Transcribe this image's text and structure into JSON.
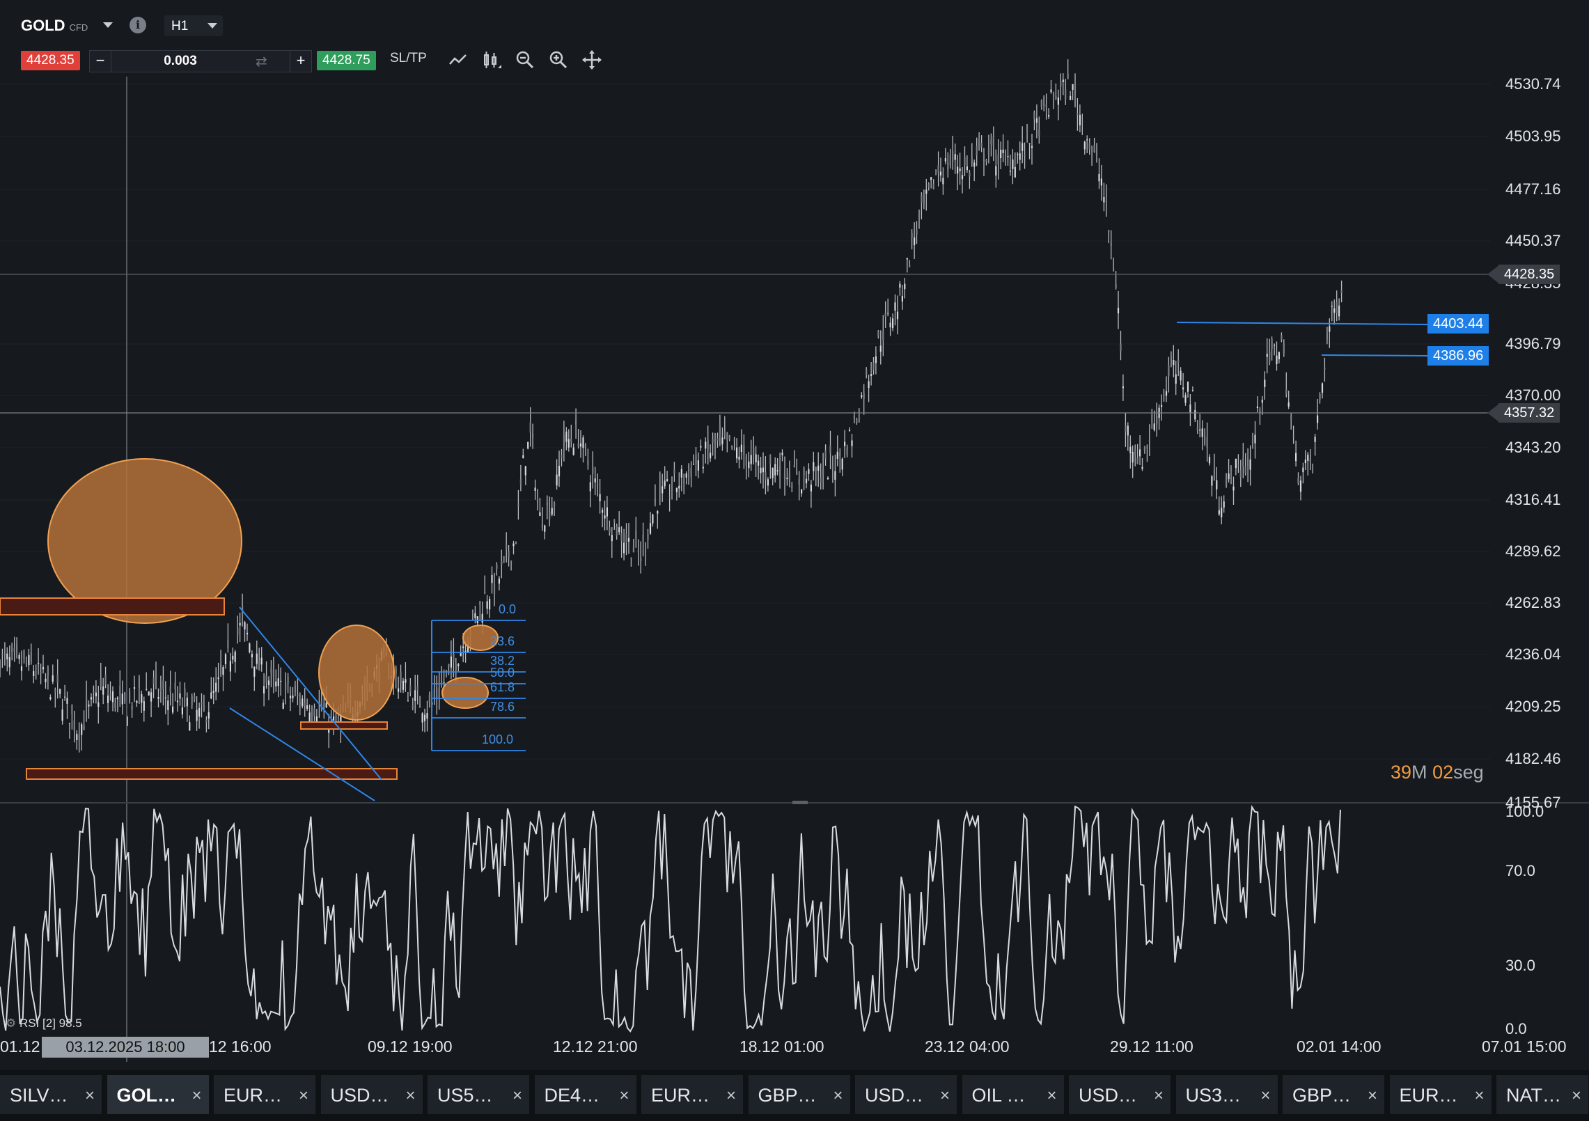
{
  "toolbar": {
    "symbol": "GOLD",
    "symbol_type": "CFD",
    "timeframe": "H1",
    "sell_price": "4428.35",
    "buy_price": "4428.75",
    "quantity": "0.003",
    "minus": "−",
    "plus": "+",
    "sltp": "SL/TP",
    "icons": [
      "line-chart-icon",
      "candles-icon",
      "zoom-out-icon",
      "zoom-in-icon",
      "crosshair-icon"
    ]
  },
  "price_axis": {
    "labels": [
      "4530.74",
      "4503.95",
      "4477.16",
      "4450.37",
      "4428.35",
      "4396.79",
      "4370.00",
      "4343.20",
      "4316.41",
      "4289.62",
      "4262.83",
      "4236.04",
      "4209.25",
      "4182.46",
      "4155.67"
    ]
  },
  "tags": {
    "current_price": "4428.35",
    "crosshair_price": "4357.32",
    "level1": "4403.44",
    "level2": "4386.96"
  },
  "timer": {
    "minutes": "39",
    "m": "M",
    "seconds": "02",
    "seg": "seg"
  },
  "fibonacci": {
    "levels": [
      "0.0",
      "23.6",
      "38.2",
      "50.0",
      "61.8",
      "78.6",
      "100.0"
    ]
  },
  "rsi": {
    "label": "RSI [2] 98.5",
    "axis": [
      "100.0",
      "70.0",
      "30.0",
      "0.0"
    ]
  },
  "time_axis": {
    "labels": [
      "01.12",
      "12 16:00",
      "09.12 19:00",
      "12.12 21:00",
      "18.12 01:00",
      "23.12 04:00",
      "29.12 11:00",
      "02.01 14:00",
      "07.01 15:00"
    ],
    "crosshair_date": "03.12.2025 18:00"
  },
  "tabs": [
    {
      "label": "SILV…",
      "active": false
    },
    {
      "label": "GOL…",
      "active": true
    },
    {
      "label": "EUR…",
      "active": false
    },
    {
      "label": "USD…",
      "active": false
    },
    {
      "label": "US5…",
      "active": false
    },
    {
      "label": "DE4…",
      "active": false
    },
    {
      "label": "EUR…",
      "active": false
    },
    {
      "label": "GBP…",
      "active": false
    },
    {
      "label": "USD…",
      "active": false
    },
    {
      "label": "OIL …",
      "active": false
    },
    {
      "label": "USD…",
      "active": false
    },
    {
      "label": "US3…",
      "active": false
    },
    {
      "label": "GBP…",
      "active": false
    },
    {
      "label": "EUR…",
      "active": false
    },
    {
      "label": "NAT…",
      "active": false
    }
  ],
  "tab_close": "×",
  "chart_data": {
    "type": "candlestick",
    "symbol": "GOLD",
    "timeframe": "H1",
    "ylim": [
      4155.67,
      4545
    ],
    "grid": true,
    "x_ticks": [
      "01.12",
      "12 16:00",
      "09.12 19:00",
      "12.12 21:00",
      "18.12 01:00",
      "23.12 04:00",
      "29.12 11:00",
      "02.01 14:00",
      "07.01 15:00"
    ],
    "close_path": [
      [
        0,
        4225
      ],
      [
        0.02,
        4222
      ],
      [
        0.04,
        4205
      ],
      [
        0.05,
        4188
      ],
      [
        0.065,
        4210
      ],
      [
        0.08,
        4200
      ],
      [
        0.095,
        4210
      ],
      [
        0.11,
        4205
      ],
      [
        0.13,
        4195
      ],
      [
        0.14,
        4212
      ],
      [
        0.15,
        4235
      ],
      [
        0.155,
        4245
      ],
      [
        0.165,
        4222
      ],
      [
        0.175,
        4212
      ],
      [
        0.19,
        4205
      ],
      [
        0.205,
        4200
      ],
      [
        0.215,
        4190
      ],
      [
        0.225,
        4200
      ],
      [
        0.235,
        4210
      ],
      [
        0.245,
        4225
      ],
      [
        0.255,
        4215
      ],
      [
        0.265,
        4205
      ],
      [
        0.275,
        4200
      ],
      [
        0.285,
        4215
      ],
      [
        0.3,
        4240
      ],
      [
        0.31,
        4258
      ],
      [
        0.32,
        4270
      ],
      [
        0.33,
        4290
      ],
      [
        0.335,
        4330
      ],
      [
        0.34,
        4345
      ],
      [
        0.345,
        4300
      ],
      [
        0.355,
        4310
      ],
      [
        0.36,
        4340
      ],
      [
        0.37,
        4345
      ],
      [
        0.38,
        4320
      ],
      [
        0.39,
        4300
      ],
      [
        0.4,
        4290
      ],
      [
        0.41,
        4280
      ],
      [
        0.42,
        4310
      ],
      [
        0.435,
        4320
      ],
      [
        0.445,
        4330
      ],
      [
        0.46,
        4340
      ],
      [
        0.475,
        4335
      ],
      [
        0.49,
        4325
      ],
      [
        0.5,
        4330
      ],
      [
        0.51,
        4320
      ],
      [
        0.525,
        4325
      ],
      [
        0.535,
        4330
      ],
      [
        0.545,
        4345
      ],
      [
        0.555,
        4375
      ],
      [
        0.565,
        4400
      ],
      [
        0.575,
        4415
      ],
      [
        0.585,
        4450
      ],
      [
        0.6,
        4485
      ],
      [
        0.61,
        4490
      ],
      [
        0.62,
        4485
      ],
      [
        0.63,
        4495
      ],
      [
        0.645,
        4490
      ],
      [
        0.655,
        4495
      ],
      [
        0.665,
        4510
      ],
      [
        0.675,
        4525
      ],
      [
        0.685,
        4530
      ],
      [
        0.695,
        4505
      ],
      [
        0.705,
        4480
      ],
      [
        0.715,
        4420
      ],
      [
        0.72,
        4350
      ],
      [
        0.73,
        4330
      ],
      [
        0.74,
        4355
      ],
      [
        0.75,
        4380
      ],
      [
        0.76,
        4370
      ],
      [
        0.77,
        4345
      ],
      [
        0.78,
        4310
      ],
      [
        0.79,
        4325
      ],
      [
        0.8,
        4330
      ],
      [
        0.81,
        4380
      ],
      [
        0.82,
        4395
      ],
      [
        0.83,
        4325
      ],
      [
        0.84,
        4330
      ],
      [
        0.85,
        4400
      ],
      [
        0.86,
        4428
      ]
    ],
    "rsi": {
      "name": "RSI [2]",
      "last": 98.5,
      "ylim": [
        0,
        100
      ],
      "levels": [
        30,
        70
      ]
    }
  }
}
